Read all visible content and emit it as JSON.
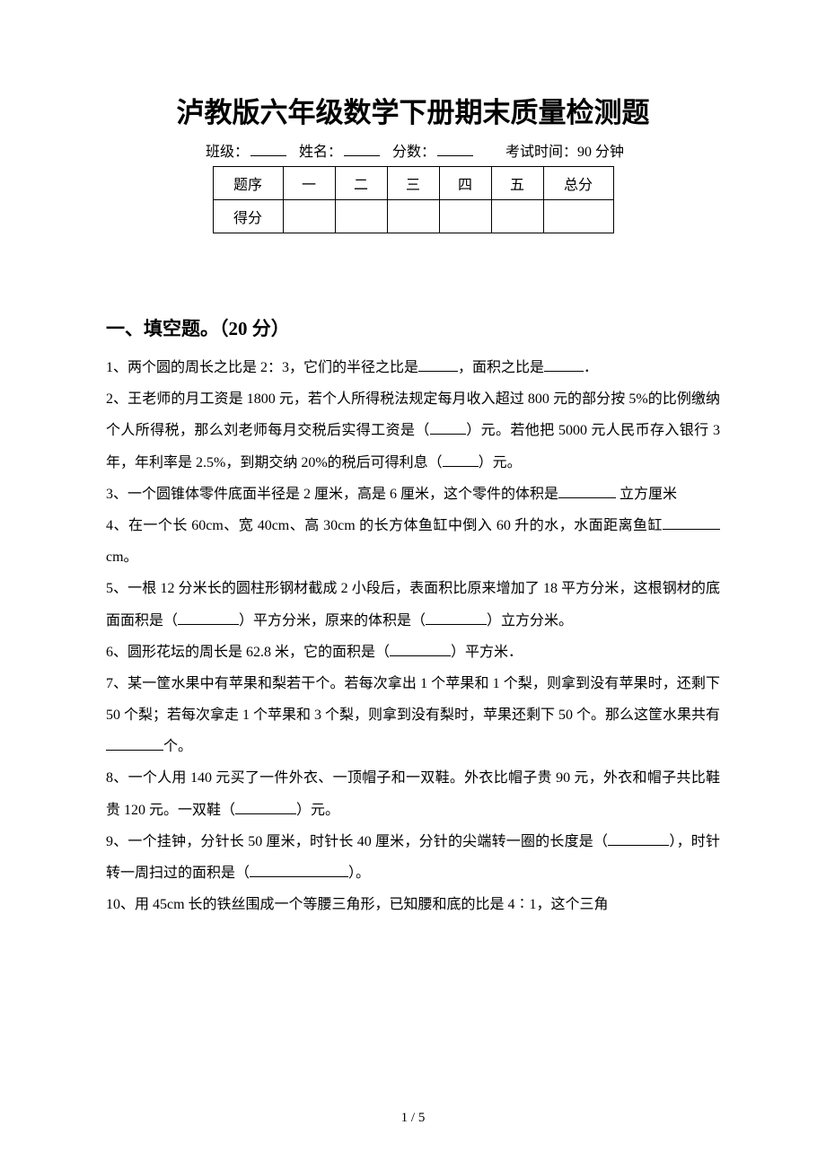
{
  "title": "泸教版六年级数学下册期末质量检测题",
  "info": {
    "class_label": "班级：",
    "name_label": "姓名：",
    "score_label": "分数：",
    "exam_time_label": "考试时间：90 分钟"
  },
  "score_table": {
    "row_header": "题序",
    "columns": [
      "一",
      "二",
      "三",
      "四",
      "五",
      "总分"
    ],
    "score_row_header": "得分"
  },
  "section1": {
    "title": "一、填空题。（20 分）"
  },
  "questions": {
    "q1": {
      "p1": "1、两个圆的周长之比是 2：3，它们的半径之比是",
      "p2": "，面积之比是",
      "p3": "．"
    },
    "q2": {
      "p1": "2、王老师的月工资是 1800 元，若个人所得税法规定每月收入超过 800 元的部分按 5%的比例缴纳个人所得税，那么刘老师每月交税后实得工资是（",
      "p2": "）元。若他把 5000 元人民币存入银行 3 年，年利率是 2.5%，到期交纳 20%的税后可得利息（",
      "p3": "）元。"
    },
    "q3": {
      "p1": "3、一个圆锥体零件底面半径是 2 厘米，高是 6 厘米，这个零件的体积是",
      "p2": "立方厘米"
    },
    "q4": {
      "p1": "4、在一个长 60cm、宽 40cm、高 30cm 的长方体鱼缸中倒入 60 升的水，水面距离鱼缸",
      "p2": "cm。"
    },
    "q5": {
      "p1": "5、一根 12 分米长的圆柱形钢材截成 2 小段后，表面积比原来增加了 18 平方分米，这根钢材的底面面积是（",
      "p2": "）平方分米，原来的体积是（",
      "p3": "）立方分米。"
    },
    "q6": {
      "p1": "6、圆形花坛的周长是 62.8 米，它的面积是（",
      "p2": "）平方米．"
    },
    "q7": {
      "p1": "7、某一筐水果中有苹果和梨若干个。若每次拿出 1 个苹果和 1 个梨，则拿到没有苹果时，还剩下 50 个梨；若每次拿走 1 个苹果和 3 个梨，则拿到没有梨时，苹果还剩下 50 个。那么这筐水果共有",
      "p2": "个。"
    },
    "q8": {
      "p1": "8、一个人用 140 元买了一件外衣、一顶帽子和一双鞋。外衣比帽子贵 90 元，外衣和帽子共比鞋贵 120 元。一双鞋（",
      "p2": "）元。"
    },
    "q9": {
      "p1": "9、一个挂钟，分针长 50 厘米，时针长 40 厘米，分针的尖端转一圈的长度是（",
      "p2": "），时针转一周扫过的面积是（",
      "p3": "）。"
    },
    "q10": {
      "p1": "10、用 45cm 长的铁丝围成一个等腰三角形，已知腰和底的比是 4∶1，这个三角"
    }
  },
  "footer": "1  /  5"
}
